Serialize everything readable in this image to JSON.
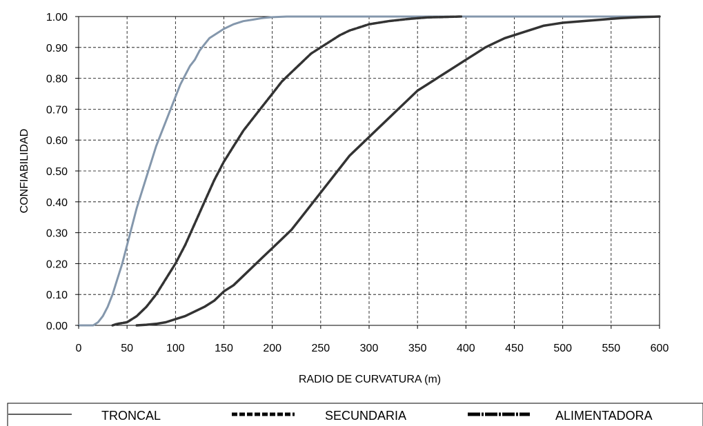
{
  "chart_data": {
    "type": "line",
    "title": "",
    "xlabel": "RADIO DE CURVATURA (m)",
    "ylabel": "CONFIABILIDAD",
    "xlim": [
      0,
      600
    ],
    "ylim": [
      0,
      1
    ],
    "x_ticks": [
      "0",
      "50",
      "100",
      "150",
      "200",
      "250",
      "300",
      "350",
      "400",
      "450",
      "500",
      "550",
      "600"
    ],
    "y_ticks": [
      "0.00",
      "0.10",
      "0.20",
      "0.30",
      "0.40",
      "0.50",
      "0.60",
      "0.70",
      "0.80",
      "0.90",
      "1.00"
    ],
    "grid": true,
    "legend_position": "bottom",
    "series": [
      {
        "name": "TRONCAL",
        "color": "#8497ac",
        "points": [
          [
            0,
            0
          ],
          [
            15,
            0.0
          ],
          [
            20,
            0.01
          ],
          [
            25,
            0.03
          ],
          [
            30,
            0.06
          ],
          [
            35,
            0.1
          ],
          [
            40,
            0.15
          ],
          [
            45,
            0.2
          ],
          [
            50,
            0.26
          ],
          [
            55,
            0.32
          ],
          [
            60,
            0.38
          ],
          [
            65,
            0.43
          ],
          [
            70,
            0.48
          ],
          [
            75,
            0.53
          ],
          [
            80,
            0.58
          ],
          [
            85,
            0.62
          ],
          [
            90,
            0.66
          ],
          [
            95,
            0.7
          ],
          [
            100,
            0.74
          ],
          [
            105,
            0.78
          ],
          [
            110,
            0.81
          ],
          [
            115,
            0.84
          ],
          [
            120,
            0.86
          ],
          [
            125,
            0.89
          ],
          [
            130,
            0.91
          ],
          [
            135,
            0.93
          ],
          [
            140,
            0.94
          ],
          [
            145,
            0.95
          ],
          [
            150,
            0.96
          ],
          [
            160,
            0.975
          ],
          [
            170,
            0.985
          ],
          [
            180,
            0.99
          ],
          [
            190,
            0.995
          ],
          [
            200,
            0.998
          ],
          [
            215,
            1.0
          ],
          [
            600,
            1.0
          ]
        ]
      },
      {
        "name": "SECUNDARIA",
        "color": "#333333",
        "points": [
          [
            35,
            0
          ],
          [
            40,
            0.005
          ],
          [
            50,
            0.01
          ],
          [
            60,
            0.03
          ],
          [
            70,
            0.06
          ],
          [
            80,
            0.1
          ],
          [
            90,
            0.15
          ],
          [
            100,
            0.2
          ],
          [
            110,
            0.26
          ],
          [
            120,
            0.33
          ],
          [
            130,
            0.4
          ],
          [
            140,
            0.47
          ],
          [
            150,
            0.53
          ],
          [
            160,
            0.58
          ],
          [
            170,
            0.63
          ],
          [
            180,
            0.67
          ],
          [
            190,
            0.71
          ],
          [
            200,
            0.75
          ],
          [
            210,
            0.79
          ],
          [
            220,
            0.82
          ],
          [
            230,
            0.85
          ],
          [
            240,
            0.88
          ],
          [
            250,
            0.9
          ],
          [
            260,
            0.92
          ],
          [
            270,
            0.94
          ],
          [
            280,
            0.955
          ],
          [
            290,
            0.965
          ],
          [
            300,
            0.975
          ],
          [
            320,
            0.985
          ],
          [
            340,
            0.992
          ],
          [
            360,
            0.997
          ],
          [
            395,
            1.0
          ]
        ]
      },
      {
        "name": "ALIMENTADORA",
        "color": "#333333",
        "points": [
          [
            60,
            0
          ],
          [
            70,
            0.002
          ],
          [
            80,
            0.005
          ],
          [
            90,
            0.01
          ],
          [
            100,
            0.02
          ],
          [
            110,
            0.03
          ],
          [
            120,
            0.045
          ],
          [
            130,
            0.06
          ],
          [
            140,
            0.08
          ],
          [
            150,
            0.11
          ],
          [
            160,
            0.13
          ],
          [
            170,
            0.16
          ],
          [
            180,
            0.19
          ],
          [
            190,
            0.22
          ],
          [
            200,
            0.25
          ],
          [
            210,
            0.28
          ],
          [
            220,
            0.31
          ],
          [
            230,
            0.35
          ],
          [
            240,
            0.39
          ],
          [
            250,
            0.43
          ],
          [
            260,
            0.47
          ],
          [
            270,
            0.51
          ],
          [
            280,
            0.55
          ],
          [
            290,
            0.58
          ],
          [
            300,
            0.61
          ],
          [
            310,
            0.64
          ],
          [
            320,
            0.67
          ],
          [
            330,
            0.7
          ],
          [
            340,
            0.73
          ],
          [
            350,
            0.76
          ],
          [
            360,
            0.78
          ],
          [
            370,
            0.8
          ],
          [
            380,
            0.82
          ],
          [
            390,
            0.84
          ],
          [
            400,
            0.86
          ],
          [
            410,
            0.88
          ],
          [
            420,
            0.9
          ],
          [
            430,
            0.915
          ],
          [
            440,
            0.93
          ],
          [
            450,
            0.94
          ],
          [
            460,
            0.95
          ],
          [
            470,
            0.96
          ],
          [
            480,
            0.97
          ],
          [
            490,
            0.975
          ],
          [
            500,
            0.98
          ],
          [
            520,
            0.985
          ],
          [
            540,
            0.99
          ],
          [
            560,
            0.995
          ],
          [
            580,
            0.998
          ],
          [
            600,
            1.0
          ]
        ]
      }
    ]
  }
}
